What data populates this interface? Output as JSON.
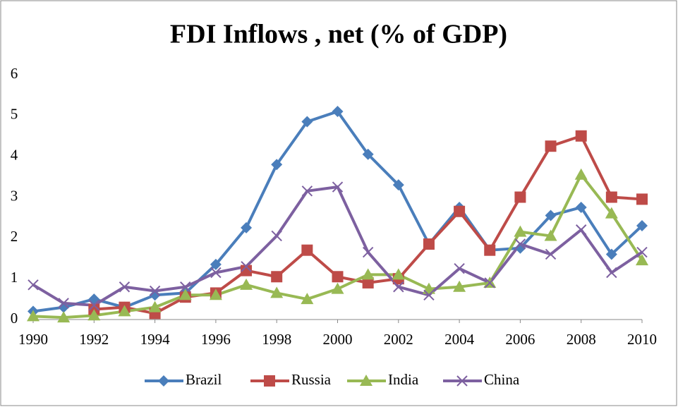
{
  "chart_data": {
    "type": "line",
    "title": "FDI Inflows , net (% of GDP)",
    "x": [
      1990,
      1991,
      1992,
      1993,
      1994,
      1995,
      1996,
      1997,
      1998,
      1999,
      2000,
      2001,
      2002,
      2003,
      2004,
      2005,
      2006,
      2007,
      2008,
      2009,
      2010
    ],
    "series": [
      {
        "name": "Brazil",
        "color": "#4a7ebb",
        "marker": "diamond",
        "values": [
          0.2,
          0.3,
          0.5,
          0.3,
          0.6,
          0.65,
          1.35,
          2.25,
          3.8,
          4.85,
          5.1,
          4.05,
          3.3,
          1.85,
          2.75,
          1.7,
          1.75,
          2.55,
          2.75,
          1.6,
          2.3
        ]
      },
      {
        "name": "Russia",
        "color": "#be4b48",
        "marker": "square",
        "values": [
          null,
          null,
          0.25,
          0.3,
          0.15,
          0.55,
          0.65,
          1.2,
          1.05,
          1.7,
          1.05,
          0.9,
          1.0,
          1.85,
          2.65,
          1.7,
          3.0,
          4.25,
          4.5,
          3.0,
          2.95
        ]
      },
      {
        "name": "India",
        "color": "#98b954",
        "marker": "triangle",
        "values": [
          0.08,
          0.05,
          0.1,
          0.2,
          0.3,
          0.6,
          0.6,
          0.85,
          0.65,
          0.5,
          0.75,
          1.1,
          1.1,
          0.75,
          0.8,
          0.9,
          2.15,
          2.05,
          3.55,
          2.6,
          1.45
        ]
      },
      {
        "name": "China",
        "color": "#7d60a0",
        "marker": "x",
        "values": [
          0.85,
          0.4,
          0.35,
          0.8,
          0.7,
          0.8,
          1.15,
          1.3,
          2.05,
          3.15,
          3.25,
          1.65,
          0.8,
          0.6,
          1.25,
          0.9,
          1.85,
          1.6,
          2.2,
          1.15,
          1.65
        ]
      }
    ],
    "xlim": [
      1990,
      2010
    ],
    "xticks": [
      1990,
      1992,
      1994,
      1996,
      1998,
      2000,
      2002,
      2004,
      2006,
      2008,
      2010
    ],
    "ylim": [
      0,
      6
    ],
    "yticks": [
      0,
      1,
      2,
      3,
      4,
      5,
      6
    ],
    "grid": false,
    "legend": "bottom"
  }
}
